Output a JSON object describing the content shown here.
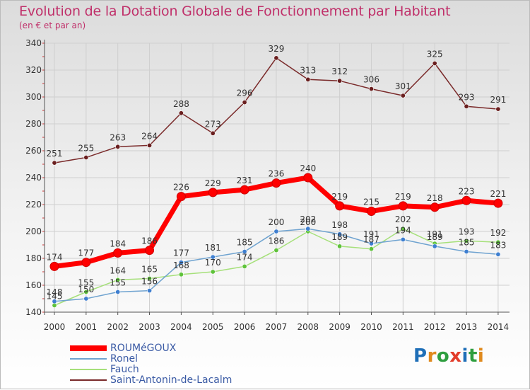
{
  "header": {
    "title": "Evolution de la Dotation Globale de Fonctionnement par Habitant",
    "subtitle": "(en € et par an)"
  },
  "logo": {
    "text": "Proxiti",
    "colors": [
      "#1f6fb8",
      "#e08a1e",
      "#2e9e3f",
      "#e23c2a",
      "#1f6fb8",
      "#2e9e3f",
      "#e08a1e"
    ]
  },
  "chart_data": {
    "type": "line",
    "title": "Evolution de la Dotation Globale de Fonctionnement par Habitant",
    "subtitle": "(en € et par an)",
    "x": [
      "2000",
      "2001",
      "2002",
      "2003",
      "2004",
      "2005",
      "2006",
      "2007",
      "2008",
      "2009",
      "2010",
      "2011",
      "2012",
      "2013",
      "2014"
    ],
    "yticks": [
      140,
      160,
      180,
      200,
      220,
      240,
      260,
      280,
      300,
      320,
      340
    ],
    "ylim": [
      140,
      340
    ],
    "grid": true,
    "legend_position": "bottom-left",
    "series": [
      {
        "name": "ROUMéGOUX",
        "color": "#ff0000",
        "values": [
          174,
          177,
          184,
          186,
          226,
          229,
          231,
          236,
          240,
          219,
          215,
          219,
          218,
          223,
          221
        ]
      },
      {
        "name": "Ronel",
        "color": "#6fa3d0",
        "values": [
          148,
          150,
          155,
          156,
          177,
          181,
          185,
          200,
          202,
          198,
          191,
          194,
          189,
          185,
          183
        ]
      },
      {
        "name": "Fauch",
        "color": "#a6e07a",
        "values": [
          145,
          155,
          164,
          165,
          168,
          170,
          174,
          186,
          200,
          189,
          187,
          202,
          191,
          193,
          192
        ]
      },
      {
        "name": "Saint-Antonin-de-Lacalm",
        "color": "#7a2a2a",
        "values": [
          251,
          255,
          263,
          264,
          288,
          273,
          296,
          329,
          313,
          312,
          306,
          301,
          325,
          293,
          291
        ]
      }
    ]
  }
}
